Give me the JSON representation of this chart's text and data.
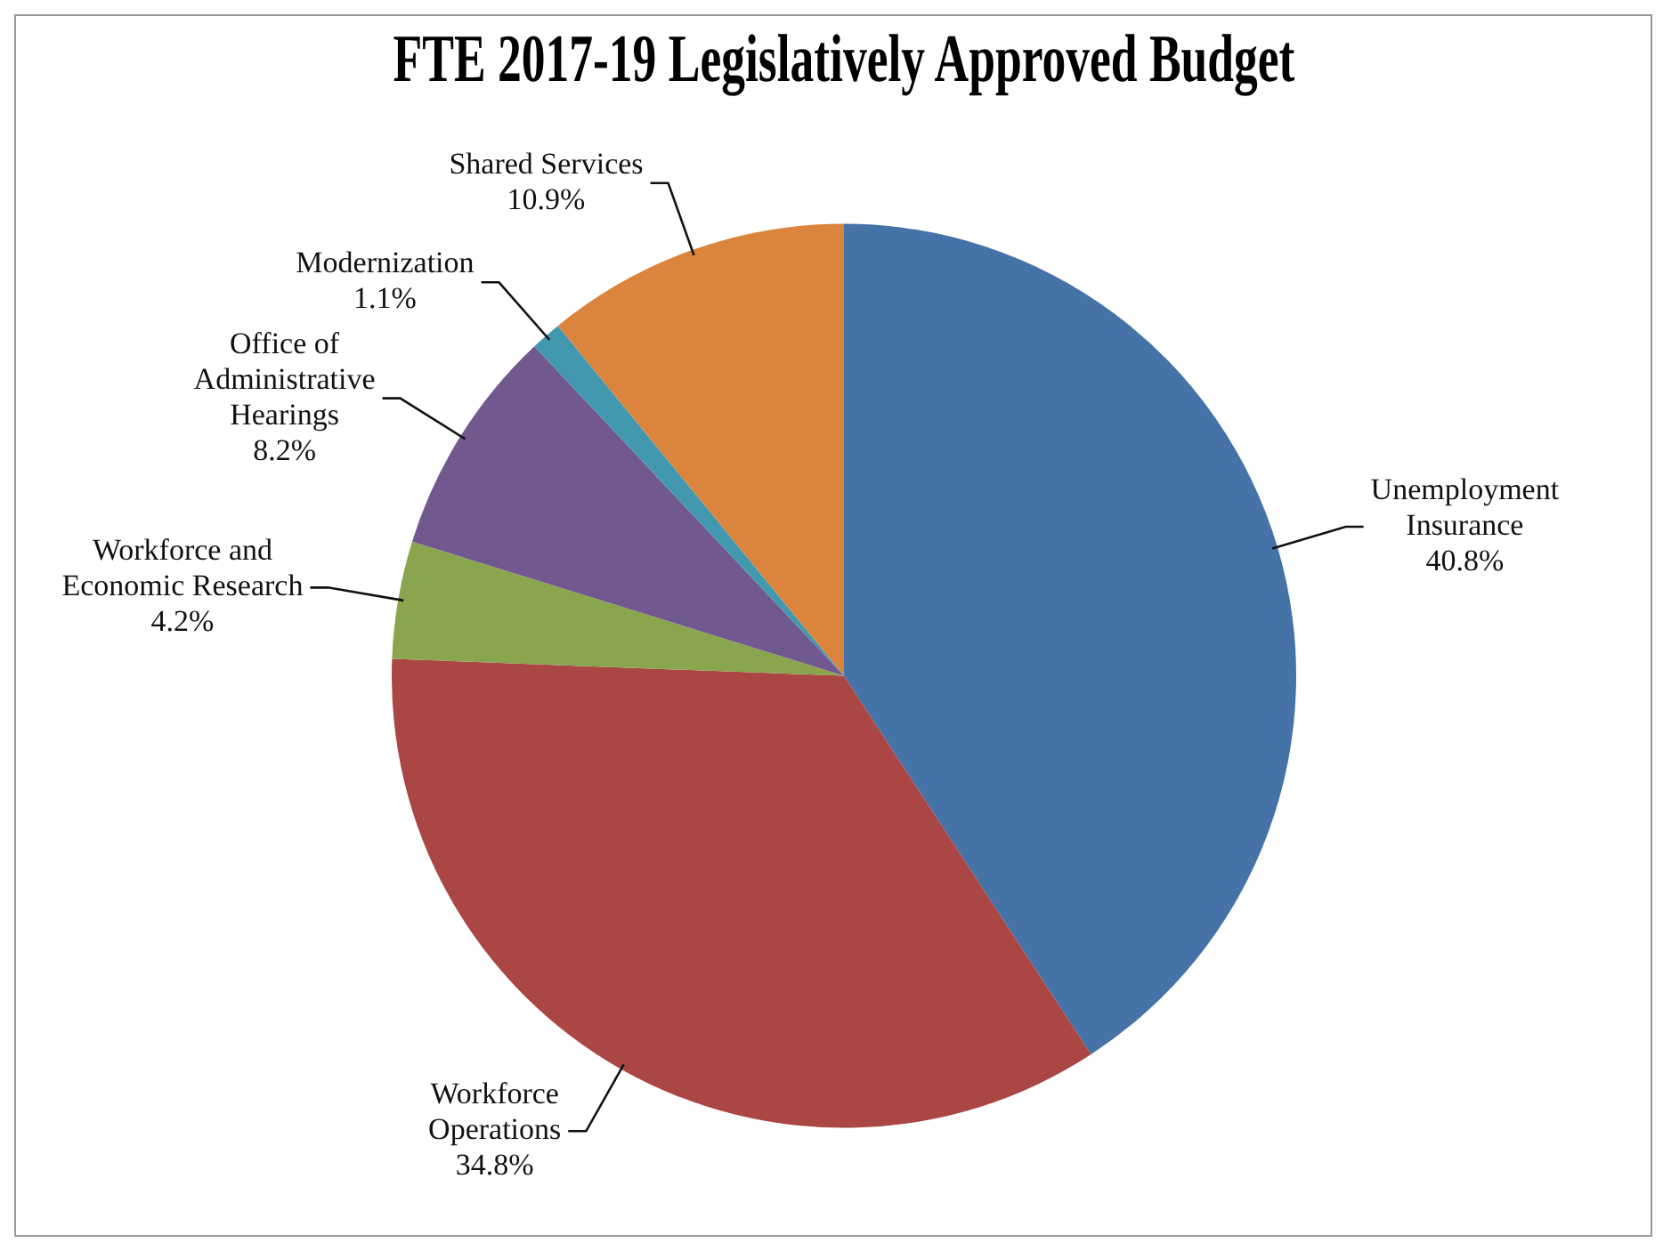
{
  "chart_data": {
    "type": "pie",
    "title": "FTE 2017-19 Legislatively Approved Budget",
    "categories": [
      "Unemployment Insurance",
      "Workforce Operations",
      "Workforce and Economic Research",
      "Office of Administrative Hearings",
      "Modernization",
      "Shared Services"
    ],
    "values": [
      40.8,
      34.8,
      4.2,
      8.2,
      1.1,
      10.9
    ],
    "colors": [
      "#4572a7",
      "#aa4643",
      "#89a54e",
      "#71588f",
      "#4198af",
      "#db843d"
    ],
    "value_labels": [
      "40.8%",
      "34.8%",
      "4.2%",
      "8.2%",
      "1.1%",
      "10.9%"
    ],
    "legend": false
  }
}
